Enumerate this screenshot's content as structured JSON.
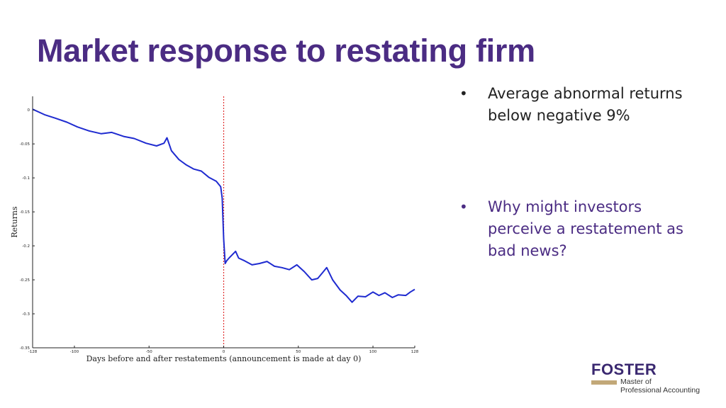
{
  "slide": {
    "title": "Market response to restating firm",
    "bullets": [
      "Average abnormal returns below negative 9%",
      "Why might investors perceive a restatement as bad news?"
    ]
  },
  "logo": {
    "word": "FOSTER",
    "line1": "Master of",
    "line2": "Professional Accounting"
  },
  "colors": {
    "title": "#4b2c83",
    "bullet2": "#4b2c83",
    "series": "#1f2bd0",
    "event_line": "#e03030",
    "logo_bar": "#c2a878"
  },
  "chart_data": {
    "type": "line",
    "xlabel": "Days before and after restatements (announcement is made at day 0)",
    "ylabel": "Returns",
    "xlim": [
      -128,
      128
    ],
    "ylim": [
      -0.35,
      0.02
    ],
    "x_ticks": [
      -128,
      -100,
      -50,
      0,
      50,
      100,
      128
    ],
    "y_ticks": [
      0,
      -0.05,
      -0.1,
      -0.15,
      -0.2,
      -0.25,
      -0.3,
      -0.35
    ],
    "x_tick_labels": [
      "-128",
      "-100",
      "-50",
      "0",
      "50",
      "100",
      "128"
    ],
    "y_tick_labels": [
      "0",
      "-0.05",
      "-0.1",
      "-0.15",
      "-0.2",
      "-0.25",
      "-0.3",
      "-0.35"
    ],
    "event_day": 0,
    "grid": false,
    "legend": "none",
    "series": [
      {
        "x": [
          -128,
          -120,
          -113,
          -105,
          -98,
          -90,
          -82,
          -75,
          -67,
          -60,
          -52,
          -45,
          -40,
          -38,
          -35,
          -30,
          -25,
          -20,
          -15,
          -10,
          -5,
          -2,
          -1,
          0,
          1,
          2,
          4,
          8,
          10,
          14,
          19,
          24,
          29,
          34,
          39,
          44,
          49,
          54,
          59,
          63,
          66,
          69,
          73,
          78,
          82,
          86,
          90,
          95,
          100,
          104,
          108,
          113,
          117,
          122,
          125,
          128
        ],
        "y": [
          0.001,
          -0.007,
          -0.012,
          -0.018,
          -0.025,
          -0.031,
          -0.035,
          -0.033,
          -0.039,
          -0.042,
          -0.049,
          -0.053,
          -0.049,
          -0.041,
          -0.06,
          -0.073,
          -0.081,
          -0.087,
          -0.09,
          -0.099,
          -0.105,
          -0.113,
          -0.13,
          -0.19,
          -0.226,
          -0.222,
          -0.217,
          -0.208,
          -0.218,
          -0.222,
          -0.228,
          -0.226,
          -0.223,
          -0.23,
          -0.232,
          -0.235,
          -0.228,
          -0.238,
          -0.25,
          -0.248,
          -0.24,
          -0.232,
          -0.25,
          -0.265,
          -0.273,
          -0.283,
          -0.274,
          -0.275,
          -0.268,
          -0.273,
          -0.269,
          -0.276,
          -0.272,
          -0.273,
          -0.268,
          -0.264
        ]
      }
    ]
  }
}
